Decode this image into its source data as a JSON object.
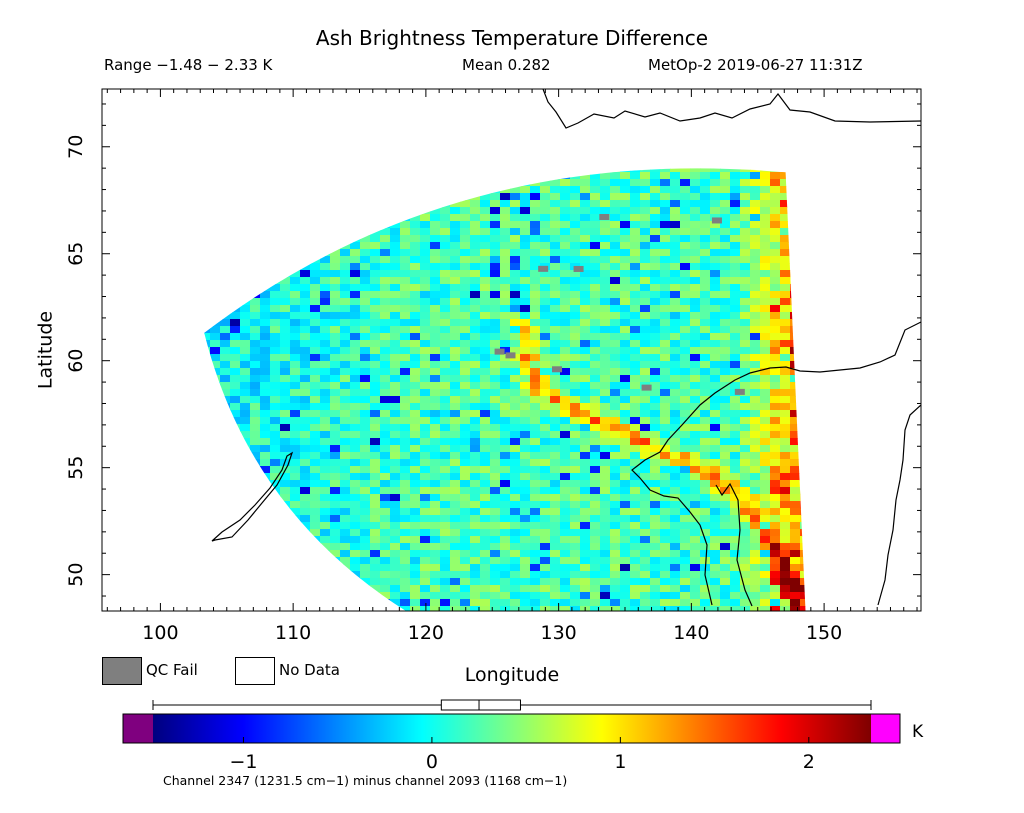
{
  "header": {
    "title": "Ash Brightness Temperature Difference",
    "range": "Range −1.48 − 2.33 K",
    "mean": "Mean 0.282",
    "satellite": "MetOp-2 2019-06-27 11:31Z"
  },
  "legend": {
    "qc_fail": "QC Fail",
    "no_data": "No Data",
    "qc_color": "#7f7f7f",
    "nodata_color": "#ffffff"
  },
  "chart_data": {
    "type": "heatmap",
    "title": "Ash Brightness Temperature Difference",
    "xlabel": "Longitude",
    "ylabel": "Latitude",
    "xlim": [
      95.6,
      157.3
    ],
    "ylim": [
      48.3,
      72.7
    ],
    "xticks": [
      100,
      110,
      120,
      130,
      140,
      150
    ],
    "yticks": [
      50,
      55,
      60,
      65,
      70
    ],
    "swath_corners_lonlat": {
      "top_left": [
        103.3,
        61.3
      ],
      "top_right": [
        147.1,
        68.8
      ],
      "bottom_right": [
        148.6,
        48.3
      ],
      "bottom_left": [
        118.5,
        48.3
      ]
    },
    "field_stats": {
      "min": -1.48,
      "max": 2.33,
      "mean": 0.282,
      "units": "K"
    },
    "features": [
      {
        "name": "elevated BTD band",
        "path_lonlat": [
          [
            126.9,
            61.7
          ],
          [
            127.8,
            59.0
          ],
          [
            131.0,
            57.8
          ],
          [
            137.0,
            56.0
          ],
          [
            141.3,
            54.8
          ],
          [
            144.3,
            53.0
          ],
          [
            146.2,
            51.0
          ],
          [
            147.7,
            49.0
          ]
        ],
        "value": 1.7
      },
      {
        "name": "eastern edge high values",
        "lon_range": [
          143.0,
          148.3
        ],
        "lat_range": [
          48.3,
          68.8
        ],
        "value": 1.6
      }
    ],
    "colorbar": {
      "ticks": [
        -1,
        0,
        1,
        2
      ],
      "tick_labels": [
        "−1",
        "0",
        "1",
        "2"
      ],
      "units": "K",
      "vmin": -1.48,
      "vmax": 2.33,
      "below_color": "#7f007f",
      "above_color": "#ff00ff",
      "colors": [
        "#00007f",
        "#0000ff",
        "#0080ff",
        "#00ffff",
        "#80ff80",
        "#ffff00",
        "#ff8000",
        "#ff0000",
        "#7f0000"
      ],
      "boxplot": {
        "min": -1.48,
        "q1": 0.05,
        "median": 0.25,
        "q3": 0.47,
        "max": 2.33
      },
      "caption": "Channel 2347 (1231.5 cm−1) minus channel 2093 (1168 cm−1)"
    }
  }
}
